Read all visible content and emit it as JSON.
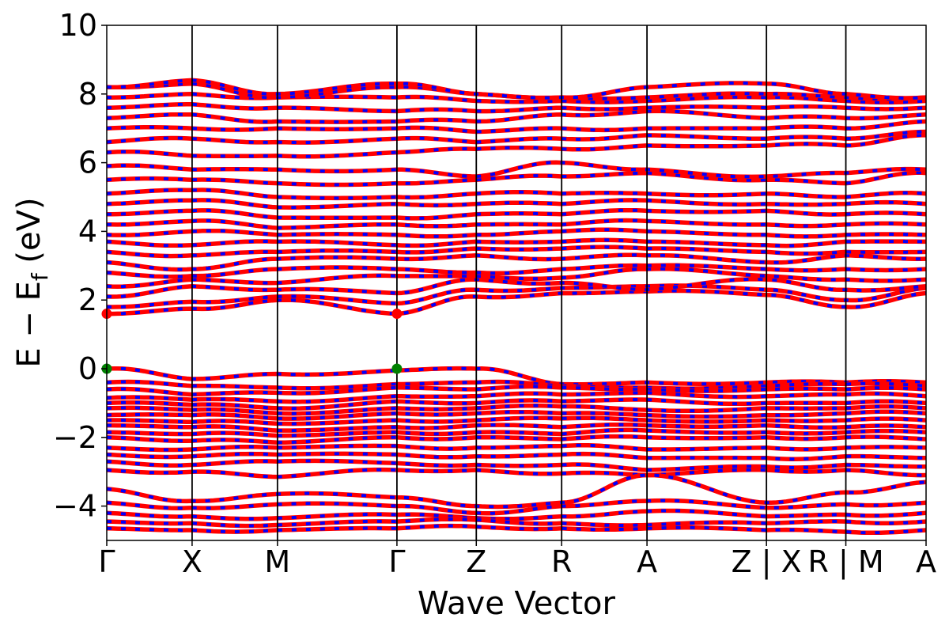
{
  "chart_data": {
    "type": "line",
    "title": "",
    "xlabel": "Wave Vector",
    "ylabel_parts": {
      "main": "E − E",
      "sub": "f",
      "unit": " (eV)"
    },
    "ylim": [
      -5,
      10
    ],
    "yticks": [
      10,
      8,
      6,
      4,
      2,
      0,
      -2,
      -4
    ],
    "ytick_labels": [
      "10",
      "8",
      "6",
      "4",
      "2",
      "0",
      "−2",
      "−4"
    ],
    "x_range": [
      0,
      9.6
    ],
    "kpoints": [
      {
        "x": 0.0,
        "label": "Γ"
      },
      {
        "x": 1.0,
        "label": "X"
      },
      {
        "x": 2.0,
        "label": "M"
      },
      {
        "x": 3.4,
        "label": "Γ"
      },
      {
        "x": 4.33,
        "label": "Z"
      },
      {
        "x": 5.33,
        "label": "R"
      },
      {
        "x": 6.33,
        "label": "A"
      },
      {
        "x": 7.73,
        "label": "Z | X"
      },
      {
        "x": 8.66,
        "label": "R | M"
      },
      {
        "x": 9.6,
        "label": "A"
      }
    ],
    "band_style": {
      "color_spin_up": "#ff0000",
      "color_spin_down": "#0000ff"
    },
    "segment_edges": [
      0,
      1.0,
      2.0,
      3.4,
      4.33,
      5.33,
      6.33,
      7.73,
      8.66,
      9.6
    ],
    "valence_bands": [
      [
        0.0,
        -0.3,
        -0.15,
        -0.05,
        0.0,
        -0.45,
        -0.4,
        -0.4,
        -0.4,
        -0.4
      ],
      [
        -0.4,
        -0.5,
        -0.55,
        -0.45,
        -0.4,
        -0.5,
        -0.55,
        -0.5,
        -0.45,
        -0.5
      ],
      [
        -0.6,
        -0.75,
        -0.7,
        -0.55,
        -0.6,
        -0.55,
        -0.6,
        -0.6,
        -0.6,
        -0.6
      ],
      [
        -0.85,
        -0.9,
        -0.95,
        -0.8,
        -0.8,
        -0.75,
        -0.7,
        -0.8,
        -0.75,
        -0.8
      ],
      [
        -1.0,
        -1.05,
        -1.15,
        -0.95,
        -1.0,
        -0.95,
        -0.9,
        -1.0,
        -1.0,
        -1.0
      ],
      [
        -1.15,
        -1.2,
        -1.3,
        -1.15,
        -1.15,
        -1.1,
        -1.2,
        -1.15,
        -1.15,
        -1.15
      ],
      [
        -1.35,
        -1.35,
        -1.45,
        -1.3,
        -1.3,
        -1.3,
        -1.35,
        -1.35,
        -1.3,
        -1.3
      ],
      [
        -1.5,
        -1.55,
        -1.6,
        -1.5,
        -1.5,
        -1.45,
        -1.5,
        -1.5,
        -1.5,
        -1.5
      ],
      [
        -1.65,
        -1.7,
        -1.8,
        -1.7,
        -1.65,
        -1.7,
        -1.65,
        -1.65,
        -1.7,
        -1.7
      ],
      [
        -1.85,
        -1.9,
        -1.95,
        -1.85,
        -1.85,
        -1.9,
        -1.8,
        -1.85,
        -1.85,
        -1.85
      ],
      [
        -2.0,
        -2.1,
        -2.15,
        -2.0,
        -2.0,
        -2.05,
        -2.0,
        -2.0,
        -2.0,
        -2.05
      ],
      [
        -2.3,
        -2.35,
        -2.3,
        -2.25,
        -2.3,
        -2.25,
        -2.35,
        -2.3,
        -2.3,
        -2.3
      ],
      [
        -2.5,
        -2.55,
        -2.5,
        -2.5,
        -2.55,
        -2.5,
        -2.6,
        -2.6,
        -2.55,
        -2.6
      ],
      [
        -2.7,
        -2.8,
        -2.7,
        -2.75,
        -2.8,
        -2.8,
        -2.95,
        -2.85,
        -2.8,
        -2.85
      ],
      [
        -2.95,
        -3.0,
        -3.15,
        -2.95,
        -2.95,
        -3.05,
        -3.1,
        -2.95,
        -2.95,
        -3.1
      ],
      [
        -3.5,
        -3.85,
        -3.65,
        -3.75,
        -4.0,
        -3.9,
        -3.1,
        -3.9,
        -3.6,
        -3.3
      ],
      [
        -3.9,
        -4.05,
        -3.95,
        -4.0,
        -4.2,
        -4.0,
        -3.85,
        -4.05,
        -3.95,
        -3.9
      ],
      [
        -4.2,
        -4.3,
        -4.35,
        -4.25,
        -4.35,
        -4.3,
        -4.15,
        -4.3,
        -4.25,
        -4.2
      ],
      [
        -4.45,
        -4.5,
        -4.55,
        -4.45,
        -4.4,
        -4.5,
        -4.55,
        -4.5,
        -4.45,
        -4.45
      ],
      [
        -4.65,
        -4.7,
        -4.7,
        -4.65,
        -4.6,
        -4.65,
        -4.65,
        -4.7,
        -4.75,
        -4.7
      ]
    ],
    "conduction_bands": [
      [
        1.6,
        1.75,
        2.0,
        1.6,
        2.1,
        2.2,
        2.25,
        2.15,
        1.8,
        2.2
      ],
      [
        1.8,
        1.95,
        2.1,
        1.9,
        2.3,
        2.35,
        2.4,
        2.3,
        2.0,
        2.35
      ],
      [
        2.1,
        2.4,
        2.3,
        2.2,
        2.6,
        2.5,
        2.3,
        2.6,
        2.3,
        2.4
      ],
      [
        2.4,
        2.6,
        2.5,
        2.7,
        2.7,
        2.65,
        2.9,
        2.7,
        2.6,
        2.6
      ],
      [
        2.8,
        2.7,
        2.9,
        2.9,
        2.8,
        2.9,
        3.0,
        2.9,
        2.9,
        2.9
      ],
      [
        3.1,
        2.9,
        3.2,
        3.2,
        3.3,
        3.2,
        3.3,
        3.1,
        3.3,
        3.2
      ],
      [
        3.4,
        3.3,
        3.4,
        3.4,
        3.5,
        3.5,
        3.5,
        3.4,
        3.4,
        3.4
      ],
      [
        3.7,
        3.6,
        3.7,
        3.6,
        3.7,
        3.7,
        3.7,
        3.6,
        3.7,
        3.7
      ],
      [
        3.9,
        4.0,
        3.9,
        3.9,
        3.9,
        4.0,
        4.0,
        3.9,
        3.9,
        3.9
      ],
      [
        4.2,
        4.3,
        4.1,
        4.2,
        4.2,
        4.2,
        4.3,
        4.2,
        4.2,
        4.2
      ],
      [
        4.5,
        4.6,
        4.4,
        4.4,
        4.5,
        4.5,
        4.6,
        4.6,
        4.5,
        4.5
      ],
      [
        4.8,
        4.9,
        4.7,
        4.8,
        4.8,
        4.8,
        4.9,
        4.8,
        4.8,
        4.8
      ],
      [
        5.1,
        5.2,
        5.0,
        5.0,
        5.1,
        5.1,
        5.1,
        5.1,
        5.0,
        5.1
      ],
      [
        5.5,
        5.5,
        5.4,
        5.4,
        5.5,
        5.6,
        5.7,
        5.5,
        5.4,
        5.7
      ],
      [
        5.9,
        5.8,
        5.8,
        5.8,
        5.6,
        6.0,
        5.8,
        5.6,
        5.7,
        5.8
      ],
      [
        6.3,
        6.2,
        6.2,
        6.3,
        6.4,
        6.4,
        6.5,
        6.5,
        6.5,
        6.8
      ],
      [
        6.6,
        6.7,
        6.6,
        6.7,
        6.6,
        6.7,
        6.8,
        6.7,
        6.7,
        6.9
      ],
      [
        7.0,
        7.0,
        7.0,
        7.0,
        6.9,
        7.0,
        7.0,
        7.0,
        7.0,
        7.2
      ],
      [
        7.3,
        7.4,
        7.2,
        7.2,
        7.2,
        7.4,
        7.5,
        7.3,
        7.3,
        7.4
      ],
      [
        7.6,
        7.7,
        7.6,
        7.5,
        7.5,
        7.6,
        7.6,
        7.6,
        7.6,
        7.6
      ],
      [
        7.9,
        8.0,
        7.9,
        7.9,
        7.8,
        7.8,
        7.8,
        7.9,
        7.8,
        7.8
      ],
      [
        8.2,
        8.3,
        7.9,
        8.2,
        8.0,
        7.9,
        7.9,
        8.0,
        7.9,
        7.9
      ],
      [
        8.2,
        8.4,
        8.0,
        8.3,
        8.0,
        7.9,
        8.2,
        8.3,
        8.0,
        7.9
      ]
    ],
    "markers": [
      {
        "x": 0.0,
        "y": 0.0,
        "color": "#008000"
      },
      {
        "x": 3.4,
        "y": 0.0,
        "color": "#008000"
      },
      {
        "x": 0.0,
        "y": 1.6,
        "color": "#ff0000"
      },
      {
        "x": 3.4,
        "y": 1.6,
        "color": "#ff0000"
      }
    ]
  }
}
